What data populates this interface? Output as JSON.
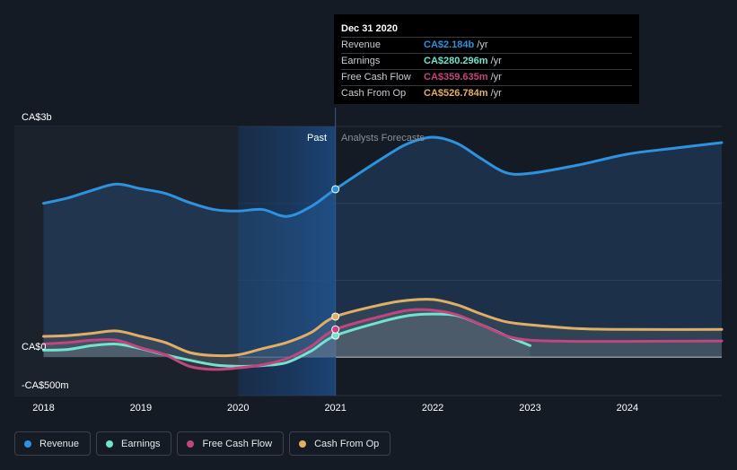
{
  "colors": {
    "revenue": "#2d92e0",
    "earnings": "#72e3cf",
    "free_cash_flow": "#c2457e",
    "cash_from_op": "#e2ae64",
    "background": "#151b24"
  },
  "tooltip": {
    "date": "Dec 31 2020",
    "rows": [
      {
        "name": "Revenue",
        "value": "CA$2.184b",
        "unit": "/yr",
        "color": "#2d92e0"
      },
      {
        "name": "Earnings",
        "value": "CA$280.296m",
        "unit": "/yr",
        "color": "#72e3cf"
      },
      {
        "name": "Free Cash Flow",
        "value": "CA$359.635m",
        "unit": "/yr",
        "color": "#c2457e"
      },
      {
        "name": "Cash From Op",
        "value": "CA$526.784m",
        "unit": "/yr",
        "color": "#e2ae64"
      }
    ]
  },
  "legend": [
    {
      "label": "Revenue",
      "color": "#2d92e0"
    },
    {
      "label": "Earnings",
      "color": "#72e3cf"
    },
    {
      "label": "Free Cash Flow",
      "color": "#c2457e"
    },
    {
      "label": "Cash From Op",
      "color": "#e2ae64"
    }
  ],
  "chart_data": {
    "type": "line",
    "title": "",
    "xlabel": "",
    "ylabel": "",
    "past_label": "Past",
    "forecast_label": "Analysts Forecasts",
    "divider_x": 2021.0,
    "highlight_range": [
      2020.0,
      2021.0
    ],
    "xlim": [
      2017.7,
      2024.97
    ],
    "ylim": [
      -500,
      3000
    ],
    "x_ticks": [
      {
        "value": 2018,
        "label": "2018"
      },
      {
        "value": 2019,
        "label": "2019"
      },
      {
        "value": 2020,
        "label": "2020"
      },
      {
        "value": 2021,
        "label": "2021"
      },
      {
        "value": 2022,
        "label": "2022"
      },
      {
        "value": 2023,
        "label": "2023"
      },
      {
        "value": 2024,
        "label": "2024"
      }
    ],
    "y_ticks": [
      {
        "value": 3000,
        "label": "CA$3b"
      },
      {
        "value": 0,
        "label": "CA$0"
      },
      {
        "value": -500,
        "label": "-CA$500m"
      }
    ],
    "y_gridlines": [
      3000,
      2000,
      1000,
      0,
      -500
    ],
    "unit": "CA$ millions",
    "series": [
      {
        "name": "Revenue",
        "key": "revenue",
        "color": "#2d92e0",
        "points": [
          [
            2018.0,
            2000
          ],
          [
            2018.25,
            2070
          ],
          [
            2018.5,
            2170
          ],
          [
            2018.75,
            2250
          ],
          [
            2019.0,
            2190
          ],
          [
            2019.25,
            2130
          ],
          [
            2019.5,
            2010
          ],
          [
            2019.75,
            1920
          ],
          [
            2020.0,
            1900
          ],
          [
            2020.25,
            1920
          ],
          [
            2020.5,
            1830
          ],
          [
            2020.75,
            1960
          ],
          [
            2021.0,
            2184
          ]
        ],
        "forecast": [
          [
            2021.0,
            2184
          ],
          [
            2021.5,
            2600
          ],
          [
            2021.75,
            2780
          ],
          [
            2022.0,
            2860
          ],
          [
            2022.25,
            2780
          ],
          [
            2022.5,
            2580
          ],
          [
            2022.75,
            2400
          ],
          [
            2023.0,
            2390
          ],
          [
            2023.5,
            2500
          ],
          [
            2024.0,
            2640
          ],
          [
            2024.5,
            2720
          ],
          [
            2024.97,
            2790
          ]
        ]
      },
      {
        "name": "Earnings",
        "key": "earnings",
        "color": "#72e3cf",
        "points": [
          [
            2018.0,
            90
          ],
          [
            2018.25,
            100
          ],
          [
            2018.5,
            150
          ],
          [
            2018.75,
            170
          ],
          [
            2019.0,
            110
          ],
          [
            2019.25,
            30
          ],
          [
            2019.5,
            -40
          ],
          [
            2019.75,
            -100
          ],
          [
            2020.0,
            -120
          ],
          [
            2020.25,
            -110
          ],
          [
            2020.5,
            -70
          ],
          [
            2020.75,
            80
          ],
          [
            2021.0,
            280
          ]
        ],
        "forecast": [
          [
            2021.0,
            280
          ],
          [
            2021.5,
            470
          ],
          [
            2021.75,
            540
          ],
          [
            2022.0,
            560
          ],
          [
            2022.25,
            540
          ],
          [
            2022.5,
            420
          ],
          [
            2022.75,
            280
          ],
          [
            2023.0,
            150
          ]
        ]
      },
      {
        "name": "Free Cash Flow",
        "key": "free_cash_flow",
        "color": "#c2457e",
        "points": [
          [
            2018.0,
            170
          ],
          [
            2018.25,
            190
          ],
          [
            2018.5,
            220
          ],
          [
            2018.75,
            220
          ],
          [
            2019.0,
            120
          ],
          [
            2019.25,
            30
          ],
          [
            2019.5,
            -120
          ],
          [
            2019.75,
            -160
          ],
          [
            2020.0,
            -140
          ],
          [
            2020.25,
            -100
          ],
          [
            2020.5,
            -20
          ],
          [
            2020.75,
            140
          ],
          [
            2021.0,
            360
          ]
        ],
        "forecast": [
          [
            2021.0,
            360
          ],
          [
            2021.5,
            540
          ],
          [
            2021.75,
            610
          ],
          [
            2022.0,
            610
          ],
          [
            2022.25,
            550
          ],
          [
            2022.5,
            420
          ],
          [
            2022.75,
            280
          ],
          [
            2023.0,
            220
          ],
          [
            2023.5,
            205
          ],
          [
            2024.0,
            205
          ],
          [
            2024.97,
            210
          ]
        ]
      },
      {
        "name": "Cash From Op",
        "key": "cash_from_op",
        "color": "#e2ae64",
        "points": [
          [
            2018.0,
            270
          ],
          [
            2018.25,
            280
          ],
          [
            2018.5,
            310
          ],
          [
            2018.75,
            340
          ],
          [
            2019.0,
            270
          ],
          [
            2019.25,
            190
          ],
          [
            2019.5,
            60
          ],
          [
            2019.75,
            20
          ],
          [
            2020.0,
            30
          ],
          [
            2020.25,
            110
          ],
          [
            2020.5,
            190
          ],
          [
            2020.75,
            320
          ],
          [
            2021.0,
            527
          ]
        ],
        "forecast": [
          [
            2021.0,
            527
          ],
          [
            2021.5,
            690
          ],
          [
            2021.75,
            740
          ],
          [
            2022.0,
            750
          ],
          [
            2022.25,
            680
          ],
          [
            2022.5,
            560
          ],
          [
            2022.75,
            460
          ],
          [
            2023.0,
            420
          ],
          [
            2023.5,
            370
          ],
          [
            2024.0,
            360
          ],
          [
            2024.97,
            360
          ]
        ]
      }
    ]
  }
}
